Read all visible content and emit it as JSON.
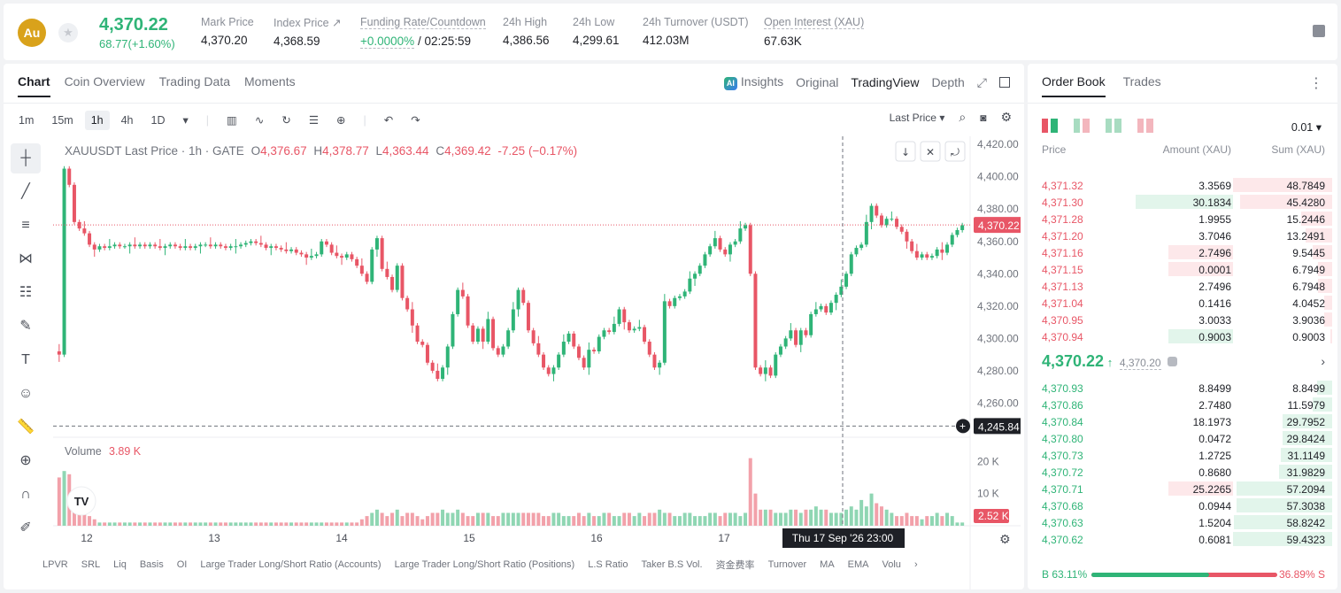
{
  "header": {
    "coin_symbol": "Au",
    "last_price": "4,370.22",
    "change": "68.77(+1.60%)",
    "stats": [
      {
        "label": "Mark Price",
        "value": "4,370.20"
      },
      {
        "label": "Index Price ↗",
        "value": "4,368.59"
      },
      {
        "label": "Funding Rate/Countdown",
        "value_green": "+0.0000%",
        "value": " / 02:25:59"
      },
      {
        "label": "24h High",
        "value": "4,386.56"
      },
      {
        "label": "24h Low",
        "value": "4,299.61"
      },
      {
        "label": "24h Turnover (USDT)",
        "value": "412.03M"
      },
      {
        "label": "Open Interest (XAU)",
        "value": "67.63K"
      }
    ]
  },
  "chart_panel": {
    "tabs": [
      "Chart",
      "Coin Overview",
      "Trading Data",
      "Moments"
    ],
    "right_tabs": [
      "Insights",
      "Original",
      "TradingView",
      "Depth"
    ],
    "ai_badge": "AI",
    "intervals": [
      "1m",
      "15m",
      "1h",
      "4h",
      "1D"
    ],
    "active_interval": "1h",
    "price_type": "Last Price",
    "legend": {
      "symbol": "XAUUSDT Last Price · 1h · GATE",
      "o": "4,376.67",
      "h": "4,378.77",
      "l": "4,363.44",
      "c": "4,369.42",
      "chg": "-7.25 (−0.17%)"
    },
    "volume_label": "Volume",
    "volume_value": "3.89 K",
    "current_price_tag": "4,370.22",
    "crosshair_price_tag": "4,245.84",
    "crosshair_time_tag": "Thu 17 Sep '26   23:00",
    "volume_last_tag": "2.52 K",
    "bottom_indicators": [
      "LPVR",
      "SRL",
      "Liq",
      "Basis",
      "OI",
      "Large Trader Long/Short Ratio (Accounts)",
      "Large Trader Long/Short Ratio (Positions)",
      "L.S Ratio",
      "Taker B.S Vol.",
      "资金费率",
      "Turnover",
      "MA",
      "EMA",
      "Volu"
    ],
    "logo_text": "TV"
  },
  "chart_data": {
    "type": "candlestick",
    "price_axis": [
      "4,420.00",
      "4,400.00",
      "4,380.00",
      "4,360.00",
      "4,340.00",
      "4,320.00",
      "4,300.00",
      "4,280.00",
      "4,260.00"
    ],
    "volume_axis": [
      "20 K",
      "10 K"
    ],
    "x_labels": [
      "12",
      "13",
      "14",
      "15",
      "16",
      "17"
    ],
    "ylim": [
      4240,
      4425
    ],
    "colors": {
      "up": "#2fb477",
      "down": "#e85666"
    },
    "closes": [
      4290,
      4405,
      4395,
      4372,
      4368,
      4365,
      4358,
      4355,
      4357,
      4356,
      4357,
      4358,
      4357,
      4357,
      4358,
      4357,
      4358,
      4357,
      4358,
      4357,
      4356,
      4357,
      4358,
      4357,
      4356,
      4357,
      4356,
      4357,
      4358,
      4358,
      4357,
      4358,
      4357,
      4356,
      4357,
      4357,
      4358,
      4359,
      4360,
      4359,
      4358,
      4356,
      4357,
      4356,
      4355,
      4354,
      4355,
      4353,
      4352,
      4350,
      4351,
      4352,
      4360,
      4358,
      4353,
      4351,
      4350,
      4352,
      4349,
      4345,
      4340,
      4335,
      4355,
      4362,
      4343,
      4338,
      4330,
      4345,
      4325,
      4318,
      4308,
      4298,
      4296,
      4285,
      4280,
      4275,
      4282,
      4295,
      4315,
      4330,
      4326,
      4308,
      4298,
      4306,
      4298,
      4312,
      4294,
      4290,
      4295,
      4305,
      4318,
      4330,
      4322,
      4305,
      4297,
      4290,
      4282,
      4278,
      4282,
      4290,
      4298,
      4303,
      4295,
      4288,
      4282,
      4293,
      4292,
      4301,
      4305,
      4304,
      4309,
      4318,
      4310,
      4305,
      4306,
      4307,
      4298,
      4290,
      4282,
      4285,
      4323,
      4320,
      4325,
      4326,
      4329,
      4337,
      4340,
      4345,
      4352,
      4357,
      4362,
      4355,
      4352,
      4358,
      4360,
      4368,
      4370,
      4340,
      4282,
      4278,
      4282,
      4277,
      4290,
      4295,
      4300,
      4305,
      4296,
      4305,
      4302,
      4315,
      4318,
      4320,
      4316,
      4322,
      4327,
      4332,
      4340,
      4352,
      4356,
      4358,
      4372,
      4382,
      4376,
      4370,
      4374,
      4374,
      4369,
      4366,
      4360,
      4354,
      4350,
      4352,
      4350,
      4351,
      4355,
      4353,
      4358,
      4364,
      4367,
      4370
    ],
    "volumes": [
      15,
      17,
      16,
      8,
      6,
      4,
      3,
      2,
      1,
      1,
      1,
      1,
      1,
      1,
      1,
      1,
      1,
      1,
      1,
      1,
      1,
      1,
      1,
      1,
      1,
      1,
      1,
      1,
      1,
      1,
      1,
      1,
      1,
      1,
      1,
      1,
      1,
      1,
      1,
      1,
      1,
      1,
      1,
      1,
      1,
      1,
      1,
      1,
      1,
      1,
      1,
      1,
      1,
      1,
      1,
      1,
      1,
      1,
      1,
      1,
      2,
      3,
      4,
      5,
      4,
      3,
      4,
      5,
      3,
      4,
      4,
      3,
      2,
      3,
      4,
      4,
      5,
      4,
      4,
      5,
      4,
      3,
      3,
      4,
      4,
      4,
      3,
      3,
      4,
      4,
      4,
      4,
      4,
      4,
      4,
      4,
      3,
      3,
      4,
      4,
      3,
      3,
      3,
      4,
      3,
      4,
      3,
      3,
      4,
      4,
      3,
      3,
      4,
      4,
      3,
      4,
      3,
      4,
      4,
      5,
      4,
      4,
      3,
      3,
      4,
      4,
      3,
      3,
      3,
      4,
      4,
      3,
      4,
      4,
      4,
      3,
      4,
      21,
      10,
      5,
      5,
      5,
      4,
      4,
      4,
      5,
      5,
      4,
      5,
      5,
      6,
      5,
      5,
      4,
      4,
      4,
      5,
      6,
      5,
      8,
      6,
      10,
      7,
      6,
      5,
      4,
      3,
      3,
      4,
      3,
      3,
      2,
      3,
      3,
      4,
      3,
      4,
      3
    ],
    "volume_max": 22
  },
  "orderbook": {
    "tabs": [
      "Order Book",
      "Trades"
    ],
    "precision": "0.01",
    "headers": [
      "Price",
      "Amount (XAU)",
      "Sum (XAU)"
    ],
    "asks": [
      {
        "p": "4,371.32",
        "a": "3.3569",
        "s": "48.7849",
        "af": 0,
        "sf": 1.0,
        "ah": false
      },
      {
        "p": "4,371.30",
        "a": "30.1834",
        "s": "45.4280",
        "af": 1.0,
        "sf": 0.93,
        "ah": true
      },
      {
        "p": "4,371.28",
        "a": "1.9955",
        "s": "15.2446",
        "af": 0,
        "sf": 0.31,
        "ah": false
      },
      {
        "p": "4,371.20",
        "a": "3.7046",
        "s": "13.2491",
        "af": 0,
        "sf": 0.27,
        "ah": false
      },
      {
        "p": "4,371.16",
        "a": "2.7496",
        "s": "9.5445",
        "af": 0.66,
        "sf": 0.2,
        "ah": false
      },
      {
        "p": "4,371.15",
        "a": "0.0001",
        "s": "6.7949",
        "af": 0.66,
        "sf": 0.14,
        "ah": false
      },
      {
        "p": "4,371.13",
        "a": "2.7496",
        "s": "6.7948",
        "af": 0,
        "sf": 0.14,
        "ah": false
      },
      {
        "p": "4,371.04",
        "a": "0.1416",
        "s": "4.0452",
        "af": 0,
        "sf": 0.08,
        "ah": false
      },
      {
        "p": "4,370.95",
        "a": "3.0033",
        "s": "3.9036",
        "af": 0,
        "sf": 0.08,
        "ah": false
      },
      {
        "p": "4,370.94",
        "a": "0.9003",
        "s": "0.9003",
        "af": 0.66,
        "sf": 0.02,
        "ah": true
      }
    ],
    "mid_price": "4,370.22",
    "mid_arrow": "↑",
    "mark_price": "4,370.20",
    "bids": [
      {
        "p": "4,370.93",
        "a": "8.8499",
        "s": "8.8499",
        "af": 0,
        "sf": 0.15,
        "ah": false
      },
      {
        "p": "4,370.86",
        "a": "2.7480",
        "s": "11.5979",
        "af": 0,
        "sf": 0.2,
        "ah": false
      },
      {
        "p": "4,370.84",
        "a": "18.1973",
        "s": "29.7952",
        "af": 0,
        "sf": 0.5,
        "ah": false
      },
      {
        "p": "4,370.80",
        "a": "0.0472",
        "s": "29.8424",
        "af": 0,
        "sf": 0.5,
        "ah": false
      },
      {
        "p": "4,370.73",
        "a": "1.2725",
        "s": "31.1149",
        "af": 0,
        "sf": 0.52,
        "ah": false
      },
      {
        "p": "4,370.72",
        "a": "0.8680",
        "s": "31.9829",
        "af": 0,
        "sf": 0.54,
        "ah": false
      },
      {
        "p": "4,370.71",
        "a": "25.2265",
        "s": "57.2094",
        "af": 0.66,
        "sf": 0.96,
        "ah": true
      },
      {
        "p": "4,370.68",
        "a": "0.0944",
        "s": "57.3038",
        "af": 0,
        "sf": 0.96,
        "ah": false
      },
      {
        "p": "4,370.63",
        "a": "1.5204",
        "s": "58.8242",
        "af": 0,
        "sf": 0.99,
        "ah": false
      },
      {
        "p": "4,370.62",
        "a": "0.6081",
        "s": "59.4323",
        "af": 0,
        "sf": 1.0,
        "ah": false
      }
    ],
    "buy_ratio": "B 63.11%",
    "sell_ratio": "36.89% S",
    "buy_fraction": 0.6311
  }
}
